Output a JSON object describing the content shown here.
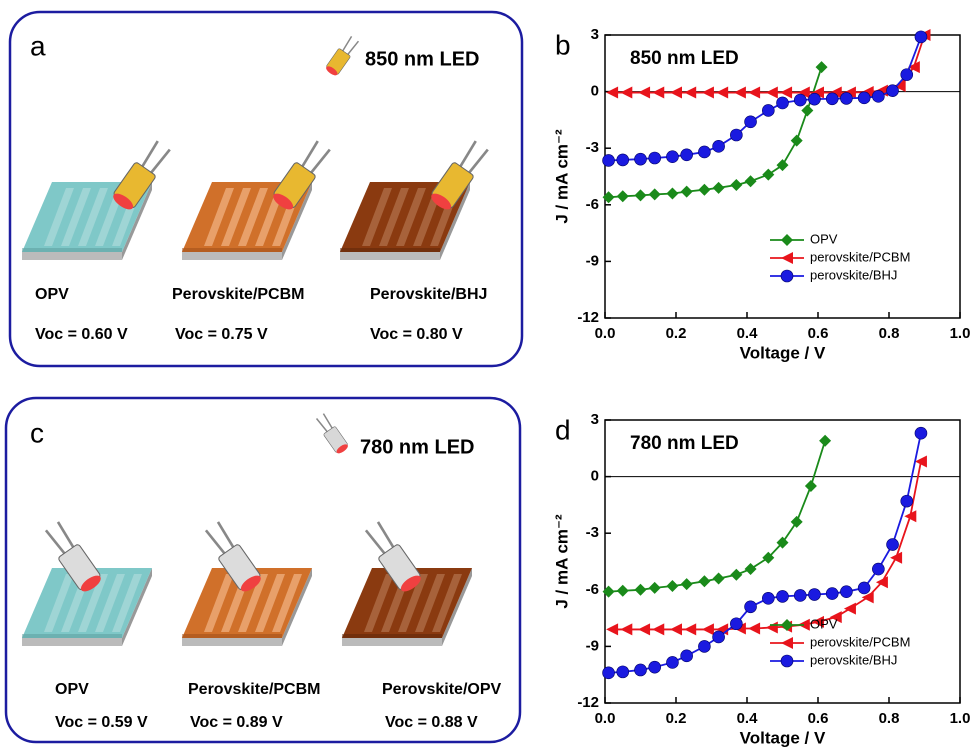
{
  "panels": [
    {
      "label": "a",
      "led": "850 nm LED",
      "devices": [
        {
          "name": "OPV",
          "voc": "Voc = 0.60 V"
        },
        {
          "name": "Perovskite/PCBM",
          "voc": "Voc = 0.75 V"
        },
        {
          "name": "Perovskite/BHJ",
          "voc": "Voc = 0.80 V"
        }
      ]
    },
    {
      "label": "c",
      "led": "780 nm LED",
      "devices": [
        {
          "name": "OPV",
          "voc": "Voc = 0.59 V"
        },
        {
          "name": "Perovskite/PCBM",
          "voc": "Voc = 0.89 V"
        },
        {
          "name": "Perovskite/OPV",
          "voc": "Voc = 0.88 V"
        }
      ]
    }
  ],
  "chart_data": [
    {
      "type": "line",
      "panel_label": "b",
      "annotation": "850 nm LED",
      "xlabel": "Voltage / V",
      "ylabel": "J / mA cm⁻²",
      "xlim": [
        0,
        1
      ],
      "ylim": [
        -12,
        3
      ],
      "xticks": [
        {
          "value": 0,
          "label": "0.0"
        },
        0.2,
        0.4,
        0.6,
        0.8,
        {
          "value": 1,
          "label": "1.0"
        }
      ],
      "yticks": [
        3,
        0,
        -3,
        -6,
        -9,
        -12
      ],
      "legend": "lower right",
      "series": [
        {
          "name": "OPV",
          "color": "#1a8a1a",
          "marker": "diamond",
          "x": [
            0.01,
            0.05,
            0.1,
            0.14,
            0.19,
            0.23,
            0.28,
            0.32,
            0.37,
            0.41,
            0.46,
            0.5,
            0.54,
            0.57,
            0.61
          ],
          "values": [
            -5.6,
            -5.55,
            -5.5,
            -5.45,
            -5.4,
            -5.3,
            -5.2,
            -5.1,
            -4.95,
            -4.75,
            -4.4,
            -3.9,
            -2.6,
            -1.0,
            1.3
          ]
        },
        {
          "name": "perovskite/PCBM",
          "color": "#e8141c",
          "marker": "triangle-left",
          "x": [
            0.02,
            0.06,
            0.11,
            0.15,
            0.2,
            0.24,
            0.29,
            0.33,
            0.38,
            0.42,
            0.47,
            0.51,
            0.56,
            0.6,
            0.65,
            0.69,
            0.74,
            0.78,
            0.83,
            0.87,
            0.9
          ],
          "values": [
            -0.05,
            -0.05,
            -0.05,
            -0.05,
            -0.05,
            -0.05,
            -0.05,
            -0.05,
            -0.05,
            -0.05,
            -0.05,
            -0.05,
            -0.05,
            -0.05,
            -0.05,
            -0.05,
            -0.02,
            0.05,
            0.3,
            1.3,
            3
          ]
        },
        {
          "name": "perovskite/BHJ",
          "color": "#1a1ae0",
          "marker": "circle",
          "x": [
            0.01,
            0.05,
            0.1,
            0.14,
            0.19,
            0.23,
            0.28,
            0.32,
            0.37,
            0.41,
            0.46,
            0.5,
            0.55,
            0.59,
            0.64,
            0.68,
            0.73,
            0.77,
            0.81,
            0.85,
            0.89
          ],
          "values": [
            -3.65,
            -3.62,
            -3.58,
            -3.52,
            -3.45,
            -3.35,
            -3.2,
            -2.9,
            -2.3,
            -1.6,
            -1.0,
            -0.6,
            -0.45,
            -0.4,
            -0.38,
            -0.36,
            -0.33,
            -0.25,
            0.05,
            0.9,
            2.9
          ]
        }
      ]
    },
    {
      "type": "line",
      "panel_label": "d",
      "annotation": "780 nm LED",
      "xlabel": "Voltage / V",
      "ylabel": "J / mA cm⁻²",
      "xlim": [
        0,
        1
      ],
      "ylim": [
        -12,
        3
      ],
      "xticks": [
        {
          "value": 0,
          "label": "0.0"
        },
        0.2,
        0.4,
        0.6,
        0.8,
        {
          "value": 1,
          "label": "1.0"
        }
      ],
      "yticks": [
        3,
        0,
        -3,
        -6,
        -9,
        -12
      ],
      "legend": "lower right",
      "series": [
        {
          "name": "OPV",
          "color": "#1a8a1a",
          "marker": "diamond",
          "x": [
            0.01,
            0.05,
            0.1,
            0.14,
            0.19,
            0.23,
            0.28,
            0.32,
            0.37,
            0.41,
            0.46,
            0.5,
            0.54,
            0.58,
            0.62
          ],
          "values": [
            -6.1,
            -6.05,
            -6.0,
            -5.9,
            -5.8,
            -5.7,
            -5.55,
            -5.4,
            -5.2,
            -4.9,
            -4.3,
            -3.5,
            -2.4,
            -0.5,
            1.9
          ]
        },
        {
          "name": "perovskite/PCBM",
          "color": "#e8141c",
          "marker": "triangle-left",
          "x": [
            0.02,
            0.06,
            0.11,
            0.15,
            0.2,
            0.24,
            0.29,
            0.33,
            0.38,
            0.42,
            0.47,
            0.51,
            0.56,
            0.6,
            0.65,
            0.69,
            0.74,
            0.78,
            0.82,
            0.86,
            0.89
          ],
          "values": [
            -8.1,
            -8.1,
            -8.1,
            -8.1,
            -8.1,
            -8.1,
            -8.1,
            -8.1,
            -8.05,
            -8.05,
            -8.0,
            -7.95,
            -7.85,
            -7.7,
            -7.45,
            -7.0,
            -6.4,
            -5.6,
            -4.3,
            -2.1,
            0.8
          ]
        },
        {
          "name": "perovskite/BHJ",
          "color": "#1a1ae0",
          "marker": "circle",
          "x": [
            0.01,
            0.05,
            0.1,
            0.14,
            0.19,
            0.23,
            0.28,
            0.32,
            0.37,
            0.41,
            0.46,
            0.5,
            0.55,
            0.59,
            0.64,
            0.68,
            0.73,
            0.77,
            0.81,
            0.85,
            0.89
          ],
          "values": [
            -10.4,
            -10.35,
            -10.25,
            -10.1,
            -9.85,
            -9.5,
            -9.0,
            -8.5,
            -7.8,
            -6.9,
            -6.45,
            -6.35,
            -6.3,
            -6.25,
            -6.2,
            -6.1,
            -5.9,
            -4.9,
            -3.6,
            -1.3,
            2.3
          ]
        }
      ]
    }
  ]
}
